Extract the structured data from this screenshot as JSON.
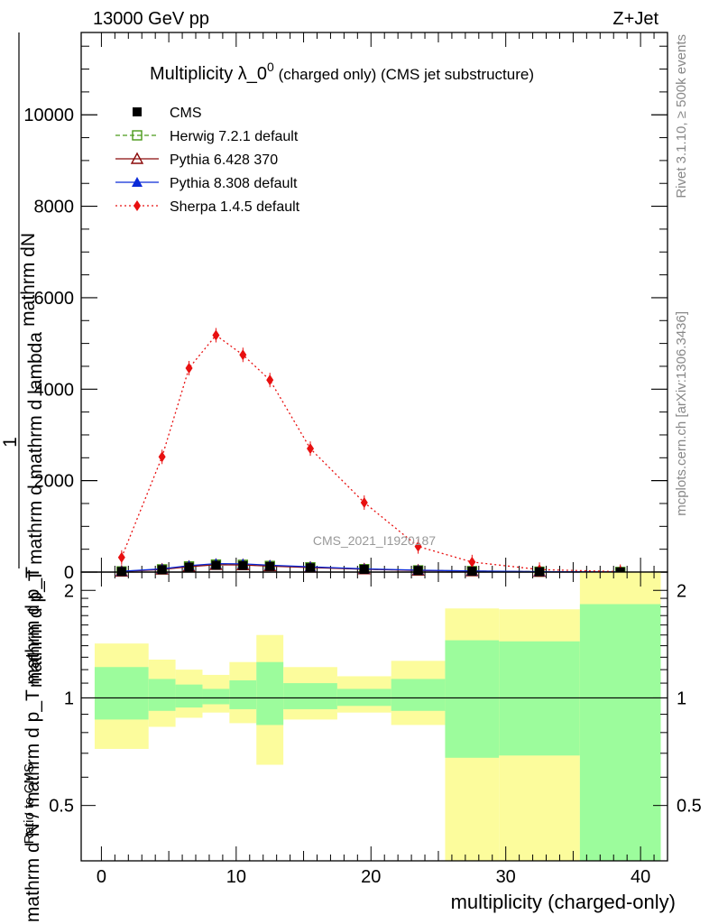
{
  "header": {
    "left": "13000 GeV pp",
    "right": "Z+Jet"
  },
  "side_labels": {
    "rivet": "Rivet 3.1.10, ≥ 500k events",
    "mcplots": "mcplots.cern.ch [arXiv:1306.3436]"
  },
  "watermark": "CMS_2021_I1920187",
  "chart_data": [
    {
      "type": "line",
      "title": "Multiplicity λ_0",
      "title_sup": "0",
      "title_suffix": " (charged only) (CMS jet substructure)",
      "ylabel_top": "mathrm dN",
      "ylabel_mid": "mathrm d p_T mathrm d mathrm d lambda",
      "ylabel_one": "1",
      "ylabel_bottom": "mathrm d N / mathrm d p_T mathrm d p_T",
      "xlim": [
        -1.5,
        42
      ],
      "ylim": [
        0,
        11800
      ],
      "yticks": [
        0,
        2000,
        4000,
        6000,
        8000,
        10000
      ],
      "ytick_labels": [
        "0",
        "2000",
        "4000",
        "6000",
        "8000",
        "10000"
      ],
      "x": [
        1.5,
        4.5,
        6.5,
        8.5,
        10.5,
        12.5,
        15.5,
        19.5,
        23.5,
        27.5,
        32.5,
        38.5
      ],
      "series": [
        {
          "name": "CMS",
          "marker": "square",
          "color": "#000000",
          "values": [
            12,
            52,
            110,
            150,
            145,
            125,
            95,
            60,
            35,
            20,
            8,
            3
          ]
        },
        {
          "name": "Herwig 7.2.1 default",
          "marker": "open-square",
          "color": "#4a9a1a",
          "values": [
            15,
            60,
            125,
            165,
            160,
            135,
            105,
            65,
            38,
            22,
            9,
            3
          ]
        },
        {
          "name": "Pythia 6.428 370",
          "marker": "open-triangle",
          "color": "#8b0a0a",
          "values": [
            14,
            58,
            120,
            160,
            155,
            130,
            100,
            62,
            36,
            21,
            8,
            3
          ]
        },
        {
          "name": "Pythia 8.308 default",
          "marker": "triangle",
          "color": "#0a2ad8",
          "values": [
            18,
            70,
            140,
            185,
            180,
            150,
            115,
            70,
            42,
            24,
            10,
            4
          ]
        },
        {
          "name": "Sherpa 1.4.5 default",
          "marker": "diamond",
          "color": "#e81010",
          "values": [
            320,
            2520,
            4460,
            5180,
            4750,
            4200,
            2700,
            1520,
            560,
            220,
            55,
            10
          ]
        }
      ]
    },
    {
      "type": "area",
      "ylabel": "Ratio to CMS",
      "xlabel": "multiplicity (charged-only)",
      "xlim": [
        -1.5,
        42
      ],
      "ylim": [
        0.35,
        2.25
      ],
      "xticks": [
        0,
        10,
        20,
        30,
        40
      ],
      "xtick_labels": [
        "0",
        "10",
        "20",
        "30",
        "40"
      ],
      "yticks": [
        0.5,
        1,
        2
      ],
      "ytick_labels": [
        "0.5",
        "1",
        "2"
      ],
      "bins": [
        {
          "x0": -0.5,
          "x1": 3.5,
          "stat": [
            0.87,
            1.22
          ],
          "total": [
            0.72,
            1.42
          ]
        },
        {
          "x0": 3.5,
          "x1": 5.5,
          "stat": [
            0.92,
            1.13
          ],
          "total": [
            0.83,
            1.28
          ]
        },
        {
          "x0": 5.5,
          "x1": 7.5,
          "stat": [
            0.94,
            1.09
          ],
          "total": [
            0.88,
            1.2
          ]
        },
        {
          "x0": 7.5,
          "x1": 9.5,
          "stat": [
            0.96,
            1.06
          ],
          "total": [
            0.91,
            1.16
          ]
        },
        {
          "x0": 9.5,
          "x1": 11.5,
          "stat": [
            0.93,
            1.12
          ],
          "total": [
            0.85,
            1.26
          ]
        },
        {
          "x0": 11.5,
          "x1": 13.5,
          "stat": [
            0.84,
            1.26
          ],
          "total": [
            0.65,
            1.5
          ]
        },
        {
          "x0": 13.5,
          "x1": 17.5,
          "stat": [
            0.93,
            1.1
          ],
          "total": [
            0.87,
            1.22
          ]
        },
        {
          "x0": 17.5,
          "x1": 21.5,
          "stat": [
            0.95,
            1.06
          ],
          "total": [
            0.91,
            1.15
          ]
        },
        {
          "x0": 21.5,
          "x1": 25.5,
          "stat": [
            0.92,
            1.13
          ],
          "total": [
            0.84,
            1.27
          ]
        },
        {
          "x0": 25.5,
          "x1": 29.5,
          "stat": [
            0.68,
            1.45
          ],
          "total": [
            0.35,
            1.78
          ]
        },
        {
          "x0": 29.5,
          "x1": 35.5,
          "stat": [
            0.69,
            1.44
          ],
          "total": [
            0.35,
            1.77
          ]
        },
        {
          "x0": 35.5,
          "x1": 41.5,
          "stat": [
            0.35,
            1.83
          ],
          "total": [
            0.35,
            2.25
          ]
        }
      ],
      "colors": {
        "stat": "#9cfc9c",
        "total": "#fcfc9c"
      }
    }
  ]
}
